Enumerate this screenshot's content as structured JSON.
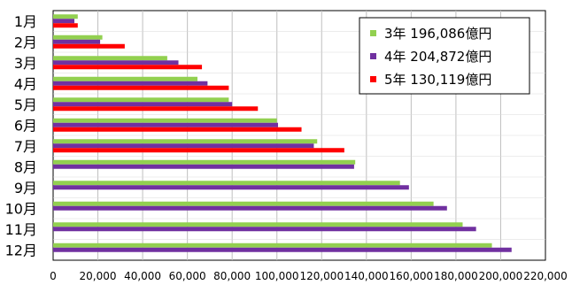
{
  "chart_data": {
    "type": "bar",
    "orientation": "horizontal",
    "categories": [
      "1月",
      "2月",
      "3月",
      "4月",
      "5月",
      "6月",
      "7月",
      "8月",
      "9月",
      "10月",
      "11月",
      "12月"
    ],
    "series": [
      {
        "name": "3年 196,086億円",
        "color": "#92d050",
        "values": [
          11000,
          22000,
          51000,
          64500,
          78500,
          100000,
          118000,
          135000,
          155000,
          170000,
          183000,
          196086
        ]
      },
      {
        "name": "4年 204,872億円",
        "color": "#7030a0",
        "values": [
          9500,
          21000,
          56000,
          69000,
          80000,
          100500,
          116500,
          134500,
          159000,
          176000,
          189000,
          204872
        ]
      },
      {
        "name": "5年 130,119億円",
        "color": "#ff0000",
        "values": [
          11000,
          32000,
          66500,
          78500,
          91500,
          111000,
          130119,
          null,
          null,
          null,
          null,
          null
        ]
      }
    ],
    "xlim": [
      0,
      220000
    ],
    "xticks": [
      "0",
      "20,000",
      "40,000",
      "60,000",
      "80,000",
      "100,000",
      "120,000",
      "140,000",
      "160,000",
      "180,000",
      "200,000",
      "220,000"
    ],
    "grid": true,
    "legend_position": "top-right"
  }
}
